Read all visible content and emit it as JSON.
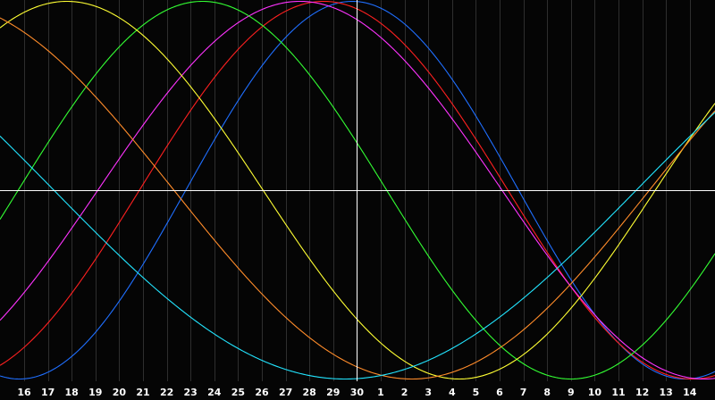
{
  "chart_data": {
    "type": "line",
    "title": "",
    "xlabel": "",
    "ylabel": "",
    "x_tick_labels": [
      "16",
      "17",
      "18",
      "19",
      "20",
      "21",
      "22",
      "23",
      "24",
      "25",
      "26",
      "27",
      "28",
      "29",
      "30",
      "1",
      "2",
      "3",
      "4",
      "5",
      "6",
      "7",
      "8",
      "9",
      "10",
      "11",
      "12",
      "13",
      "14"
    ],
    "ylim": [
      -1,
      1
    ],
    "cursor_x_label": "30",
    "grid": true,
    "legend": "none",
    "background": "#050505",
    "gridline_color": "#2e2e2e",
    "axis_color": "#ffffff",
    "series": [
      {
        "color": "#1f6fff",
        "peak_at_tick": 13.8,
        "period_ticks": 28
      },
      {
        "color": "#ff2020",
        "peak_at_tick": 12.6,
        "period_ticks": 31
      },
      {
        "color": "#ff33ff",
        "peak_at_tick": 11.6,
        "period_ticks": 34
      },
      {
        "color": "#33ff33",
        "peak_at_tick": 7.5,
        "period_ticks": 31
      },
      {
        "color": "#ffff33",
        "peak_at_tick": 1.8,
        "period_ticks": 33
      },
      {
        "color": "#ff8c2a",
        "peak_at_tick": -3.7,
        "period_ticks": 40
      },
      {
        "color": "#22e5ff",
        "peak_at_tick": -11.0,
        "period_ticks": 49
      }
    ]
  }
}
